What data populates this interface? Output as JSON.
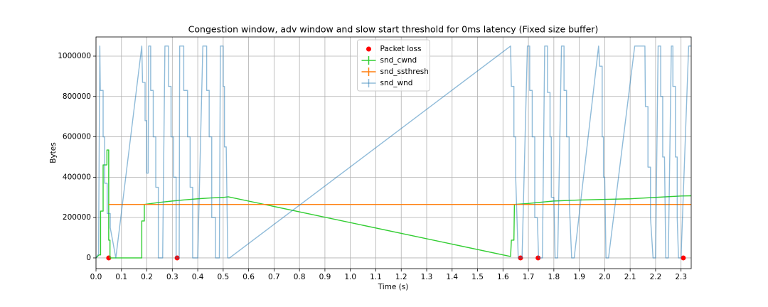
{
  "chart_data": {
    "type": "line",
    "title": "Congestion window, adv window and slow start threshold for 0ms latency (Fixed size buffer)",
    "x_label": "Time (s)",
    "y_label": "Bytes",
    "xlim": [
      0,
      2.34
    ],
    "ylim": [
      -53000,
      1095000
    ],
    "xticks": [
      {
        "value": 0,
        "label": "0.0"
      },
      0.1,
      0.2,
      0.3,
      0.4,
      0.5,
      0.6,
      0.7,
      0.8,
      0.9,
      {
        "value": 1,
        "label": "1.0"
      },
      1.1,
      1.2,
      1.3,
      1.4,
      1.5,
      1.6,
      1.7,
      1.8,
      1.9,
      {
        "value": 2,
        "label": "2.0"
      },
      2.1,
      2.2,
      2.3
    ],
    "yticks": [
      0,
      200000,
      400000,
      600000,
      800000,
      1000000
    ],
    "grid": true,
    "legend": "upper center",
    "series": [
      {
        "name": "Packet loss",
        "style": "markers",
        "color": "#ff0000",
        "alpha": 1,
        "x": [
          0.05,
          0.319,
          1.669,
          1.738,
          2.309
        ],
        "values": [
          0,
          0,
          0,
          0,
          0
        ]
      },
      {
        "name": "snd_cwnd",
        "style": "line",
        "color": "#32cd32",
        "alpha": 1,
        "x": [
          0,
          0.012,
          0.018,
          0.018,
          0.028,
          0.028,
          0.043,
          0.043,
          0.05,
          0.05,
          0.055,
          0.055,
          0.18,
          0.18,
          0.19,
          0.19,
          0.25,
          0.3,
          0.35,
          0.4,
          0.45,
          0.5,
          0.52,
          1.63,
          1.633,
          1.643,
          1.645,
          1.7,
          1.8,
          1.9,
          2.0,
          2.1,
          2.2,
          2.3,
          2.34
        ],
        "values": [
          0,
          15000,
          15000,
          232000,
          232000,
          461000,
          461000,
          535000,
          535000,
          88000,
          88000,
          0,
          0,
          183000,
          183000,
          265000,
          275000,
          282000,
          288000,
          293000,
          297000,
          300000,
          303000,
          7000,
          88000,
          88000,
          265000,
          270000,
          282000,
          287000,
          290000,
          293000,
          300000,
          307000,
          308000
        ]
      },
      {
        "name": "snd_ssthresh",
        "style": "line",
        "color": "#ff7f0e",
        "alpha": 1,
        "x": [
          0.05,
          2.34
        ],
        "values": [
          265000,
          265000
        ]
      },
      {
        "name": "snd_wnd",
        "style": "line",
        "color": "#1f77b4",
        "alpha": 0.5,
        "x": [
          0,
          0.01,
          0.015,
          0.017,
          0.028,
          0.028,
          0.034,
          0.034,
          0.044,
          0.044,
          0.056,
          0.056,
          0.078,
          0.18,
          0.183,
          0.193,
          0.193,
          0.199,
          0.199,
          0.205,
          0.207,
          0.215,
          0.215,
          0.225,
          0.225,
          0.235,
          0.235,
          0.245,
          0.245,
          0.262,
          0.271,
          0.285,
          0.285,
          0.295,
          0.295,
          0.305,
          0.305,
          0.315,
          0.315,
          0.327,
          0.329,
          0.345,
          0.345,
          0.36,
          0.36,
          0.37,
          0.37,
          0.38,
          0.38,
          0.4,
          0.42,
          0.435,
          0.435,
          0.445,
          0.445,
          0.455,
          0.455,
          0.47,
          0.47,
          0.485,
          0.489,
          0.5,
          0.5,
          0.505,
          0.505,
          0.512,
          0.518,
          0.525,
          1.63,
          1.633,
          1.643,
          1.643,
          1.65,
          1.65,
          1.66,
          1.675,
          1.696,
          1.705,
          1.705,
          1.715,
          1.715,
          1.725,
          1.725,
          1.735,
          1.74,
          1.755,
          1.764,
          1.775,
          1.775,
          1.785,
          1.785,
          1.79,
          1.79,
          1.8,
          1.805,
          1.815,
          1.83,
          1.84,
          1.84,
          1.85,
          1.85,
          1.86,
          1.86,
          1.87,
          1.88,
          1.976,
          1.98,
          1.99,
          1.99,
          1.995,
          1.995,
          2.0,
          2.005,
          2.015,
          2.118,
          2.158,
          2.16,
          2.17,
          2.17,
          2.18,
          2.18,
          2.19,
          2.2,
          2.21,
          2.22,
          2.22,
          2.228,
          2.228,
          2.235,
          2.24,
          2.25,
          2.262,
          2.268,
          2.268,
          2.278,
          2.278,
          2.285,
          2.285,
          2.29,
          2.3,
          2.33,
          2.34
        ],
        "values": [
          0,
          20000,
          1050000,
          830000,
          830000,
          600000,
          600000,
          370000,
          370000,
          220000,
          220000,
          150000,
          0,
          1050000,
          870000,
          870000,
          680000,
          680000,
          420000,
          420000,
          1050000,
          1050000,
          830000,
          830000,
          600000,
          600000,
          350000,
          350000,
          0,
          0,
          1050000,
          1050000,
          850000,
          850000,
          600000,
          600000,
          400000,
          400000,
          0,
          0,
          1050000,
          1050000,
          830000,
          830000,
          600000,
          600000,
          350000,
          350000,
          0,
          0,
          1050000,
          1050000,
          830000,
          830000,
          600000,
          600000,
          200000,
          200000,
          0,
          0,
          1050000,
          1050000,
          850000,
          850000,
          550000,
          550000,
          0,
          0,
          1050000,
          850000,
          850000,
          600000,
          600000,
          400000,
          0,
          0,
          1050000,
          1050000,
          830000,
          830000,
          600000,
          600000,
          200000,
          200000,
          0,
          0,
          1050000,
          1050000,
          820000,
          820000,
          600000,
          600000,
          300000,
          300000,
          0,
          0,
          1050000,
          1050000,
          830000,
          830000,
          600000,
          600000,
          300000,
          0,
          0,
          1050000,
          950000,
          950000,
          600000,
          600000,
          400000,
          400000,
          0,
          0,
          1050000,
          1050000,
          750000,
          750000,
          450000,
          450000,
          200000,
          0,
          0,
          1050000,
          1050000,
          800000,
          800000,
          500000,
          500000,
          0,
          0,
          1050000,
          1050000,
          850000,
          850000,
          500000,
          500000,
          200000,
          0,
          0,
          1050000,
          1050000
        ]
      }
    ]
  }
}
